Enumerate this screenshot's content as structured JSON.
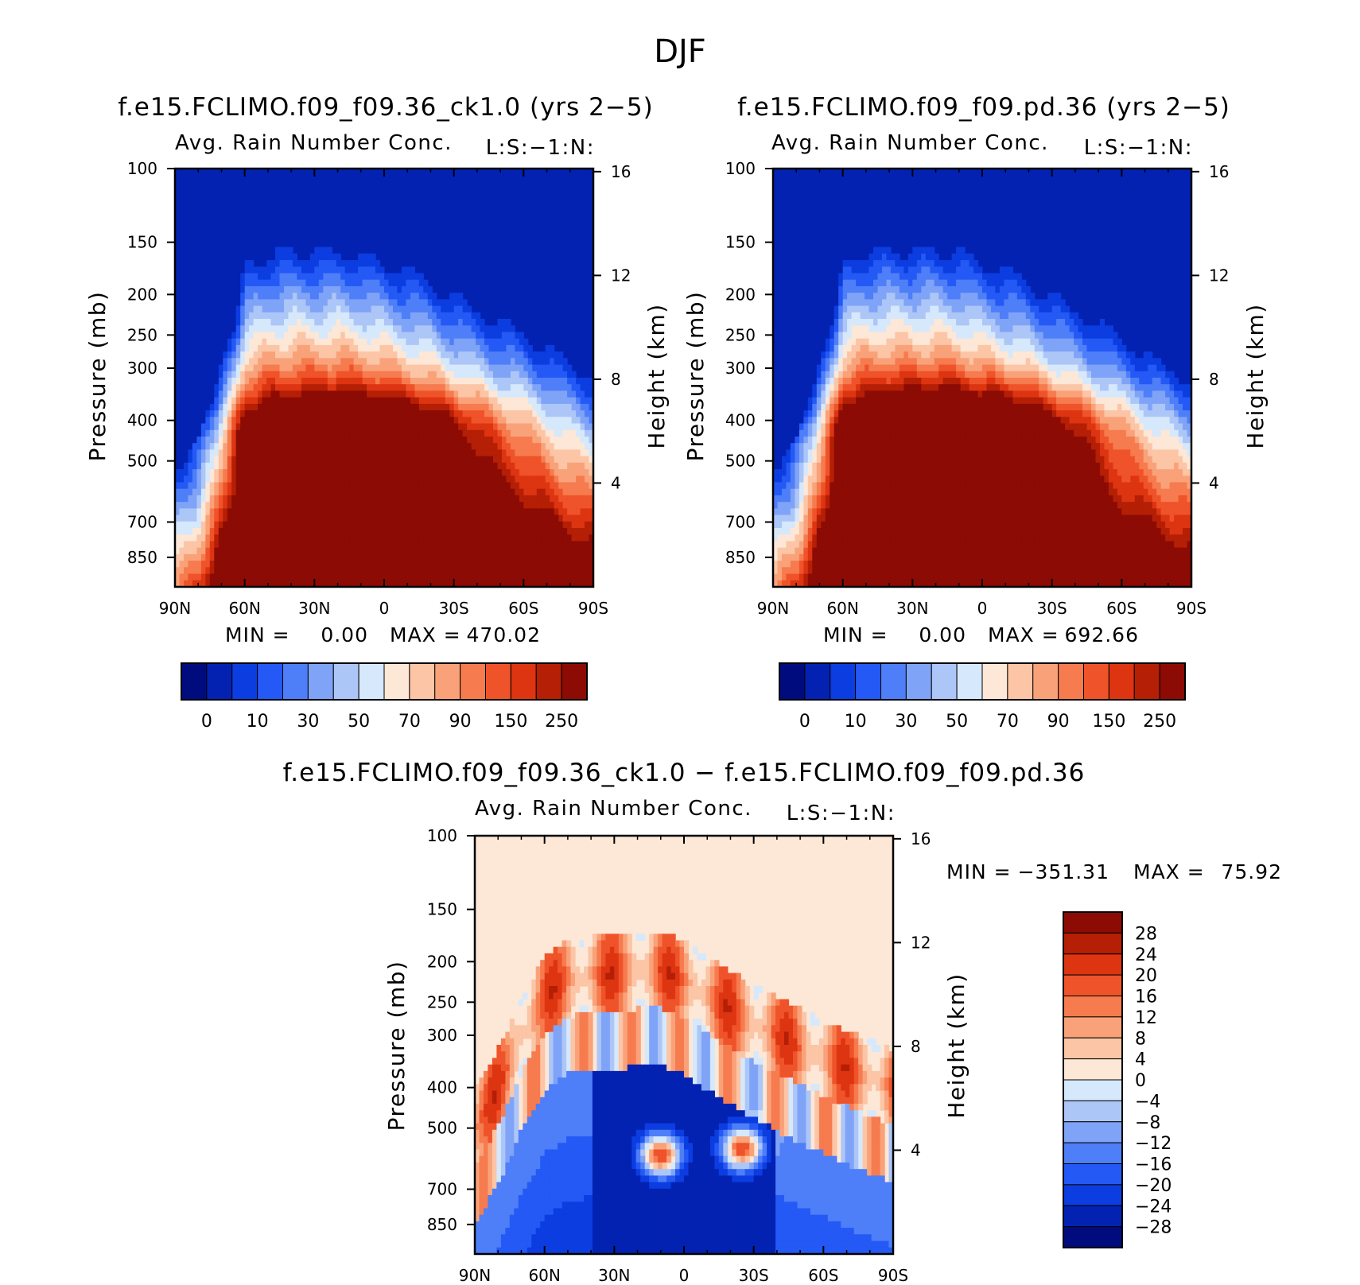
{
  "page": {
    "title": "DJF"
  },
  "chart_data": [
    {
      "type": "heatmap",
      "title": "f.e15.FCLIMO.f09_f09.36_ck1.0 (yrs 2−5)",
      "subtitle": "Avg. Rain Number Conc.",
      "corner_label": "L:S:−1:N:",
      "ylabel": "Pressure (mb)",
      "y2label": "Height (km)",
      "x_ticks": [
        "90N",
        "60N",
        "30N",
        "0",
        "30S",
        "60S",
        "90S"
      ],
      "y_ticks": [
        "100",
        "150",
        "200",
        "250",
        "300",
        "400",
        "500",
        "700",
        "850"
      ],
      "y2_ticks": [
        "16",
        "12",
        "8",
        "4"
      ],
      "ylim_mb": [
        100,
        1000
      ],
      "y_scale": "log",
      "min_label": "MIN =",
      "min_value": "0.00",
      "max_label": "MAX =",
      "max_value": "470.02",
      "colorbar_labels": [
        "0",
        "10",
        "30",
        "50",
        "70",
        "90",
        "150",
        "250"
      ],
      "colorbar_colors": [
        "#000c7e",
        "#0322b2",
        "#0c3de0",
        "#2459f5",
        "#4e7ef8",
        "#7fa3f7",
        "#adc6f8",
        "#d6e8fb",
        "#fde7d6",
        "#fbc5a6",
        "#f9a27a",
        "#f67b4e",
        "#ef532a",
        "#dd3411",
        "#b41f05",
        "#8c0b04"
      ],
      "field": {
        "x_lat": [
          -90,
          -60,
          -40,
          -20,
          -10,
          0,
          5,
          10,
          20,
          30,
          40,
          50,
          60,
          70,
          80,
          90
        ],
        "top_mb": [
          420,
          330,
          290,
          250,
          235,
          225,
          220,
          215,
          210,
          210,
          210,
          215,
          230,
          400,
          600,
          700
        ],
        "peaks": [
          {
            "lat": 10,
            "mb": 430,
            "sx": 35,
            "sy": 0.16,
            "amp": 7
          },
          {
            "lat": -15,
            "mb": 690,
            "sx": 18,
            "sy": 0.22,
            "amp": 3
          },
          {
            "lat": 3,
            "mb": 600,
            "sx": 6,
            "sy": 0.25,
            "amp": -3
          }
        ]
      }
    },
    {
      "type": "heatmap",
      "title": "f.e15.FCLIMO.f09_f09.pd.36 (yrs 2−5)",
      "subtitle": "Avg. Rain Number Conc.",
      "corner_label": "L:S:−1:N:",
      "ylabel": "Pressure (mb)",
      "y2label": "Height (km)",
      "x_ticks": [
        "90N",
        "60N",
        "30N",
        "0",
        "30S",
        "60S",
        "90S"
      ],
      "y_ticks": [
        "100",
        "150",
        "200",
        "250",
        "300",
        "400",
        "500",
        "700",
        "850"
      ],
      "y2_ticks": [
        "16",
        "12",
        "8",
        "4"
      ],
      "ylim_mb": [
        100,
        1000
      ],
      "y_scale": "log",
      "min_label": "MIN =",
      "min_value": "0.00",
      "max_label": "MAX =",
      "max_value": "692.66",
      "colorbar_labels": [
        "0",
        "10",
        "30",
        "50",
        "70",
        "90",
        "150",
        "250"
      ],
      "colorbar_colors": [
        "#000c7e",
        "#0322b2",
        "#0c3de0",
        "#2459f5",
        "#4e7ef8",
        "#7fa3f7",
        "#adc6f8",
        "#d6e8fb",
        "#fde7d6",
        "#fbc5a6",
        "#f9a27a",
        "#f67b4e",
        "#ef532a",
        "#dd3411",
        "#b41f05",
        "#8c0b04"
      ],
      "field": {
        "x_lat": [
          -90,
          -60,
          -40,
          -20,
          -10,
          0,
          5,
          10,
          20,
          30,
          40,
          50,
          60,
          70,
          80,
          90
        ],
        "top_mb": [
          430,
          340,
          290,
          250,
          235,
          225,
          218,
          212,
          208,
          208,
          208,
          210,
          225,
          400,
          600,
          720
        ],
        "peaks": [
          {
            "lat": 8,
            "mb": 430,
            "sx": 38,
            "sy": 0.17,
            "amp": 8
          },
          {
            "lat": -20,
            "mb": 640,
            "sx": 12,
            "sy": 0.15,
            "amp": 4
          },
          {
            "lat": 2,
            "mb": 600,
            "sx": 5,
            "sy": 0.25,
            "amp": -3
          }
        ]
      }
    },
    {
      "type": "heatmap",
      "title": "f.e15.FCLIMO.f09_f09.36_ck1.0 − f.e15.FCLIMO.f09_f09.pd.36",
      "subtitle": "Avg. Rain Number Conc.",
      "corner_label": "L:S:−1:N:",
      "ylabel": "Pressure (mb)",
      "y2label": "Height (km)",
      "x_ticks": [
        "90N",
        "60N",
        "30N",
        "0",
        "30S",
        "60S",
        "90S"
      ],
      "y_ticks": [
        "100",
        "150",
        "200",
        "250",
        "300",
        "400",
        "500",
        "700",
        "850"
      ],
      "y2_ticks": [
        "16",
        "12",
        "8",
        "4"
      ],
      "ylim_mb": [
        100,
        1000
      ],
      "y_scale": "log",
      "min_label": "MIN =",
      "min_value": "−351.31",
      "max_label": "MAX =",
      "max_value": "75.92",
      "colorbar_labels": [
        "28",
        "24",
        "20",
        "16",
        "12",
        "8",
        "4",
        "0",
        "−4",
        "−8",
        "−12",
        "−16",
        "−20",
        "−24",
        "−28"
      ],
      "colorbar_colors": [
        "#8c0b04",
        "#b41f05",
        "#dd3411",
        "#ef532a",
        "#f67b4e",
        "#f9a27a",
        "#fbc5a6",
        "#fde7d6",
        "#d6e8fb",
        "#adc6f8",
        "#7fa3f7",
        "#4e7ef8",
        "#2459f5",
        "#0c3de0",
        "#0322b2",
        "#000c7e"
      ],
      "field": {
        "x_lat": [
          -90,
          -60,
          -40,
          -20,
          -10,
          0,
          5,
          10,
          20,
          30,
          40,
          50,
          60,
          70,
          80,
          90
        ],
        "top_mb": [
          400,
          340,
          300,
          260,
          240,
          220,
          215,
          210,
          210,
          215,
          215,
          220,
          240,
          300,
          400,
          500
        ],
        "peaks": [
          {
            "lat": -25,
            "mb": 560,
            "sx": 6,
            "sy": 0.08,
            "amp": 3
          },
          {
            "lat": 10,
            "mb": 580,
            "sx": 6,
            "sy": 0.08,
            "amp": 3
          }
        ]
      }
    }
  ]
}
